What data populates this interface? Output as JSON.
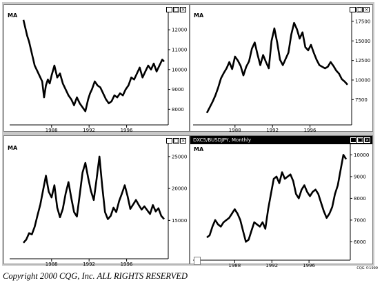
{
  "copyright": "Copyright 2000 CQG, Inc. ALL RIGHTS RESERVED",
  "credit": "CQG ©1999",
  "window_controls": {
    "minimize": "_",
    "restore": "□",
    "close": "×"
  },
  "chart_data": [
    {
      "type": "line",
      "indicator_label": "MA",
      "x_ticks": [
        "1988",
        "1992",
        "1996"
      ],
      "y_ticks": [
        8000,
        9000,
        10000,
        11000,
        12000
      ],
      "x": [
        1985.0,
        1985.2,
        1985.4,
        1985.6,
        1985.8,
        1986.0,
        1986.2,
        1986.5,
        1986.8,
        1987.0,
        1987.2,
        1987.4,
        1987.6,
        1987.8,
        1988.0,
        1988.3,
        1988.6,
        1988.9,
        1989.2,
        1989.5,
        1989.8,
        1990.1,
        1990.4,
        1990.7,
        1991.0,
        1991.3,
        1991.6,
        1991.9,
        1992.1,
        1992.3,
        1992.6,
        1992.9,
        1993.2,
        1993.5,
        1993.8,
        1994.1,
        1994.4,
        1994.7,
        1995.0,
        1995.3,
        1995.6,
        1995.9,
        1996.2,
        1996.5,
        1996.8,
        1997.1,
        1997.4,
        1997.7,
        1998.0,
        1998.3,
        1998.6,
        1998.9,
        1999.2,
        1999.5,
        1999.8,
        2000.0
      ],
      "values": [
        12500,
        12100,
        11700,
        11400,
        11000,
        10600,
        10200,
        9900,
        9600,
        9400,
        8600,
        9200,
        9500,
        9300,
        9700,
        10200,
        9600,
        9800,
        9300,
        9000,
        8700,
        8500,
        8200,
        8600,
        8300,
        8100,
        7900,
        8500,
        8800,
        9000,
        9400,
        9200,
        9100,
        8800,
        8500,
        8300,
        8400,
        8700,
        8600,
        8800,
        8700,
        9000,
        9200,
        9600,
        9500,
        9800,
        10100,
        9600,
        9900,
        10200,
        10000,
        10300,
        9900,
        10200,
        10500,
        10400
      ],
      "ylim": [
        7700,
        12700
      ]
    },
    {
      "type": "line",
      "indicator_label": "MA",
      "x_ticks": [
        "1988",
        "1992",
        "1996"
      ],
      "y_ticks": [
        7500,
        10000,
        12500,
        15000,
        17500
      ],
      "x": [
        1985.0,
        1985.3,
        1985.6,
        1985.9,
        1986.2,
        1986.5,
        1986.8,
        1987.1,
        1987.4,
        1987.7,
        1988.0,
        1988.3,
        1988.6,
        1988.9,
        1989.2,
        1989.5,
        1989.8,
        1990.1,
        1990.4,
        1990.7,
        1991.0,
        1991.3,
        1991.6,
        1991.9,
        1992.2,
        1992.5,
        1992.8,
        1993.1,
        1993.4,
        1993.7,
        1994.0,
        1994.3,
        1994.6,
        1994.9,
        1995.2,
        1995.5,
        1995.8,
        1996.1,
        1996.4,
        1996.7,
        1997.0,
        1997.3,
        1997.6,
        1997.9,
        1998.2,
        1998.5,
        1998.8,
        1999.1,
        1999.4,
        1999.7,
        2000.0
      ],
      "values": [
        5800,
        6500,
        7200,
        8000,
        9000,
        10200,
        10900,
        11500,
        12300,
        11400,
        13000,
        12500,
        11800,
        10600,
        11700,
        12400,
        14000,
        14800,
        13300,
        11900,
        13200,
        12300,
        11500,
        15000,
        16600,
        14800,
        12600,
        11900,
        12700,
        13500,
        15800,
        17300,
        16500,
        15300,
        16100,
        14200,
        13800,
        14500,
        13500,
        12600,
        11900,
        11700,
        11500,
        11700,
        12300,
        11800,
        11200,
        10800,
        10100,
        9800,
        9400
      ],
      "ylim": [
        5500,
        18200
      ]
    },
    {
      "type": "line",
      "indicator_label": "MA",
      "x_ticks": [
        "1988",
        "1992",
        "1996"
      ],
      "y_ticks": [
        15000,
        20000,
        25000
      ],
      "x": [
        1985.0,
        1985.3,
        1985.6,
        1985.9,
        1986.2,
        1986.5,
        1986.8,
        1987.1,
        1987.4,
        1987.7,
        1988.0,
        1988.3,
        1988.6,
        1988.9,
        1989.2,
        1989.5,
        1989.8,
        1990.1,
        1990.4,
        1990.7,
        1991.0,
        1991.3,
        1991.6,
        1991.9,
        1992.2,
        1992.5,
        1992.8,
        1993.1,
        1993.4,
        1993.7,
        1994.0,
        1994.3,
        1994.6,
        1994.9,
        1995.2,
        1995.5,
        1995.8,
        1996.1,
        1996.4,
        1996.7,
        1997.0,
        1997.3,
        1997.6,
        1997.9,
        1998.2,
        1998.5,
        1998.8,
        1999.1,
        1999.4,
        1999.7,
        2000.0
      ],
      "values": [
        11500,
        12000,
        13000,
        12800,
        14000,
        15800,
        17500,
        19800,
        22000,
        19500,
        18600,
        20500,
        17000,
        15500,
        16800,
        19200,
        21000,
        18500,
        16300,
        15600,
        19000,
        22500,
        24000,
        21700,
        19600,
        18200,
        21500,
        25000,
        20400,
        16300,
        15200,
        15700,
        17000,
        16300,
        18000,
        19200,
        20500,
        18800,
        16800,
        17500,
        18200,
        17400,
        16700,
        17200,
        16600,
        16000,
        17400,
        16400,
        16900,
        15700,
        15200
      ],
      "ylim": [
        10500,
        26500
      ]
    },
    {
      "type": "line",
      "indicator_label": "MA",
      "window_title": "DXC5/BUSDJPY, Monthly",
      "x_ticks": [
        "1988",
        "1992",
        "1996"
      ],
      "y_ticks": [
        6000,
        7000,
        8000,
        9000,
        10000
      ],
      "x": [
        1985.0,
        1985.3,
        1985.6,
        1985.9,
        1986.2,
        1986.5,
        1986.8,
        1987.1,
        1987.4,
        1987.7,
        1988.0,
        1988.3,
        1988.6,
        1988.9,
        1989.2,
        1989.5,
        1989.8,
        1990.1,
        1990.4,
        1990.7,
        1991.0,
        1991.3,
        1991.6,
        1991.9,
        1992.2,
        1992.5,
        1992.8,
        1993.1,
        1993.4,
        1993.7,
        1994.0,
        1994.3,
        1994.6,
        1994.9,
        1995.2,
        1995.5,
        1995.8,
        1996.1,
        1996.4,
        1996.7,
        1997.0,
        1997.3,
        1997.6,
        1997.9,
        1998.2,
        1998.5,
        1998.8,
        1999.1,
        1999.4,
        1999.7,
        2000.0
      ],
      "values": [
        6200,
        6300,
        6700,
        7000,
        6800,
        6700,
        6900,
        7000,
        7100,
        7300,
        7500,
        7300,
        7000,
        6500,
        6000,
        6100,
        6500,
        6900,
        6800,
        6700,
        6900,
        6600,
        7500,
        8200,
        8900,
        9000,
        8700,
        9200,
        8900,
        9000,
        9100,
        8800,
        8200,
        8000,
        8400,
        8600,
        8300,
        8100,
        8300,
        8400,
        8200,
        7800,
        7400,
        7100,
        7300,
        7600,
        8200,
        8600,
        9300,
        10000,
        9800
      ],
      "ylim": [
        5600,
        10300
      ]
    }
  ]
}
